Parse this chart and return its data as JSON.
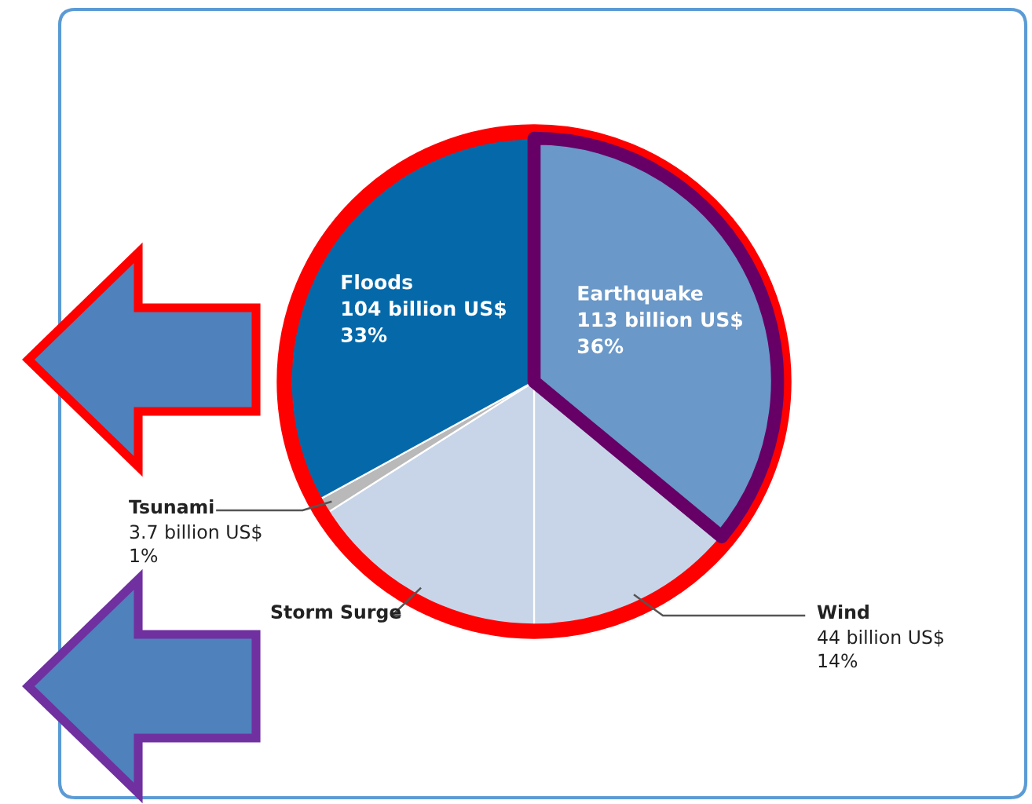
{
  "chart_data": {
    "type": "pie",
    "categories": [
      "Earthquake",
      "Wind",
      "Storm Surge",
      "Tsunami",
      "Floods"
    ],
    "values": [
      36,
      14,
      16,
      1,
      33
    ],
    "colors": [
      "#6a98c8",
      "#c8d5e8",
      "#c8d5e8",
      "#b9b9b9",
      "#0569a9"
    ],
    "value_labels": [
      "113 billion US$\n36%",
      "44 billion US$\n14%",
      null,
      "3.7 billion US$\n1%",
      "104 billion US$\n33%"
    ]
  }
}
